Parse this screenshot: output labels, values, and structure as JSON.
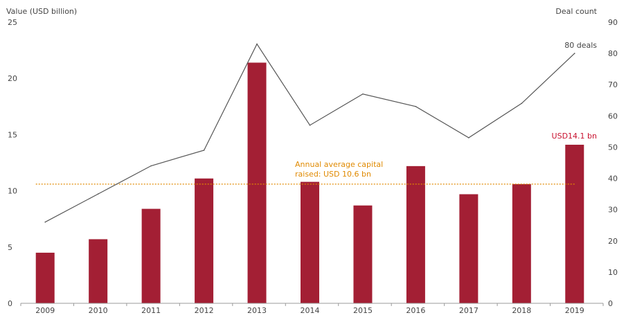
{
  "chart_data": {
    "type": "bar+line",
    "categories": [
      "2009",
      "2010",
      "2011",
      "2012",
      "2013",
      "2014",
      "2015",
      "2016",
      "2017",
      "2018",
      "2019"
    ],
    "series": [
      {
        "type": "bar",
        "axis": "left",
        "values": [
          4.5,
          5.7,
          8.4,
          11.1,
          21.4,
          10.8,
          8.7,
          12.2,
          9.7,
          10.6,
          14.1
        ]
      },
      {
        "type": "line",
        "axis": "right",
        "values": [
          26,
          35,
          44,
          49,
          83,
          57,
          67,
          63,
          53,
          64,
          80
        ]
      }
    ],
    "ylabel": "Value (USD billion)",
    "ylim": [
      0,
      25
    ],
    "yticks": [
      0,
      5,
      10,
      15,
      20,
      25
    ],
    "y2label": "Deal count",
    "y2lim": [
      0,
      90
    ],
    "y2ticks": [
      0,
      10,
      20,
      30,
      40,
      50,
      60,
      70,
      80,
      90
    ],
    "reference_line": {
      "value": 10.6,
      "label_line1": "Annual average capital",
      "label_line2": "raised: USD 10.6 bn"
    },
    "annotations": {
      "bar_last": "USD14.1 bn",
      "line_last": "80 deals"
    },
    "grid": false,
    "colors": {
      "bar": "#A31F34",
      "line": "#555555",
      "average": "#E08A00",
      "bar_label": "#C8102E",
      "text": "#444444"
    }
  }
}
